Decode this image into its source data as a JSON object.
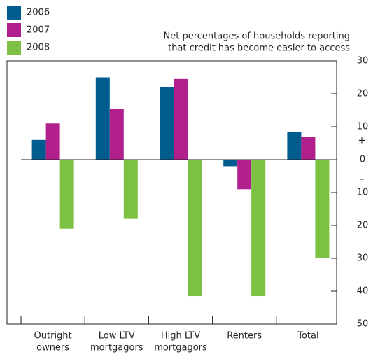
{
  "chart_data": {
    "type": "bar",
    "subtitle": [
      "Net percentages of households reporting",
      "that credit has become easier to access"
    ],
    "categories": [
      [
        "Outright",
        "owners"
      ],
      [
        "Low LTV",
        "mortgagors"
      ],
      [
        "High LTV",
        "mortgagors"
      ],
      [
        "Renters"
      ],
      [
        "Total"
      ]
    ],
    "series": [
      {
        "name": "2006",
        "color": "#005b8e",
        "values": [
          6,
          25,
          22,
          -2,
          8.5
        ]
      },
      {
        "name": "2007",
        "color": "#b11f8c",
        "values": [
          11,
          15.5,
          24.5,
          -9,
          7
        ]
      },
      {
        "name": "2008",
        "color": "#7cc142",
        "values": [
          -21,
          -18,
          -41.5,
          -41.5,
          -30
        ]
      }
    ],
    "ylim": [
      -50,
      30
    ],
    "yticks": [
      30,
      20,
      10,
      0,
      {
        "value": -10,
        "label": "10"
      },
      {
        "value": -20,
        "label": "20"
      },
      {
        "value": -30,
        "label": "30"
      },
      {
        "value": -40,
        "label": "40"
      },
      {
        "value": -50,
        "label": "50"
      }
    ],
    "sign_labels": [
      "+",
      "–"
    ]
  }
}
